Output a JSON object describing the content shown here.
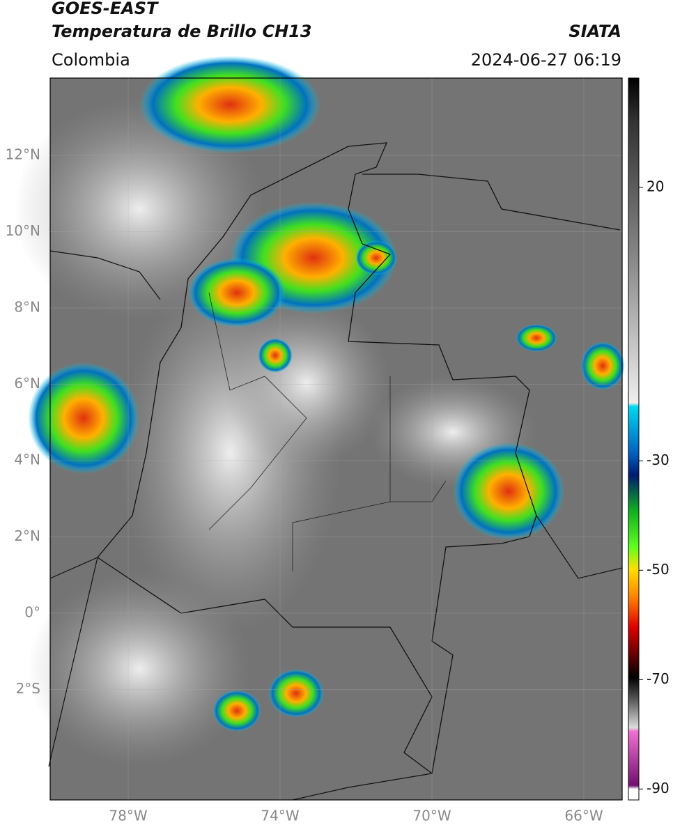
{
  "header": {
    "title": "GOES-EAST",
    "subtitle": "Temperatura de Brillo CH13",
    "region": "Colombia",
    "source": "SIATA",
    "datetime": "2024-06-27 06:19"
  },
  "map": {
    "lat_labels": [
      "12°N",
      "10°N",
      "8°N",
      "6°N",
      "4°N",
      "2°N",
      "0°",
      "2°S"
    ],
    "lon_labels": [
      "78°W",
      "74°W",
      "70°W",
      "66°W"
    ]
  },
  "colorbar": {
    "range": [
      -92,
      40
    ],
    "ticks": [
      20,
      -30,
      -50,
      -70,
      -90
    ]
  }
}
